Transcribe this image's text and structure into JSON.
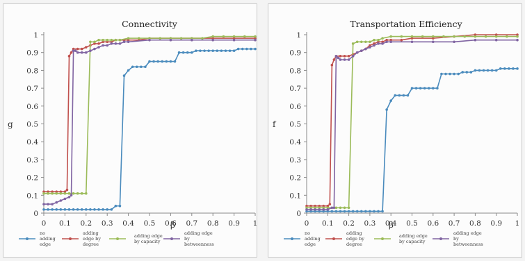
{
  "colors": {
    "none": "#4a8bbd",
    "degree": "#c0504d",
    "capacity": "#9bbb59",
    "betweenness": "#8064a2"
  },
  "chart_data": [
    {
      "type": "line",
      "title": "Connectivity",
      "ylabel": "g",
      "xlabel": "β",
      "xlim": [
        0,
        1
      ],
      "ylim": [
        0,
        1
      ],
      "xticks": [
        "0",
        "0.1",
        "0.2",
        "0.3",
        "0.4",
        "0.5",
        "0.6",
        "0.7",
        "0.8",
        "0.9",
        "1"
      ],
      "yticks": [
        "0",
        "0.1",
        "0.2",
        "0.3",
        "0.4",
        "0.5",
        "0.6",
        "0.7",
        "0.8",
        "0.9",
        "1"
      ],
      "grid": false,
      "legend_position": "bottom",
      "series": [
        {
          "name": [
            "no",
            "adding",
            "edge"
          ],
          "color_key": "none",
          "x": [
            0,
            0.02,
            0.04,
            0.06,
            0.08,
            0.1,
            0.12,
            0.14,
            0.16,
            0.18,
            0.2,
            0.22,
            0.24,
            0.26,
            0.28,
            0.3,
            0.32,
            0.34,
            0.36,
            0.38,
            0.4,
            0.42,
            0.44,
            0.46,
            0.48,
            0.5,
            0.52,
            0.54,
            0.56,
            0.58,
            0.6,
            0.62,
            0.64,
            0.66,
            0.68,
            0.7,
            0.72,
            0.74,
            0.76,
            0.78,
            0.8,
            0.82,
            0.84,
            0.86,
            0.88,
            0.9,
            0.92,
            0.94,
            0.96,
            0.98,
            1
          ],
          "y": [
            0.02,
            0.02,
            0.02,
            0.02,
            0.02,
            0.02,
            0.02,
            0.02,
            0.02,
            0.02,
            0.02,
            0.02,
            0.02,
            0.02,
            0.02,
            0.02,
            0.02,
            0.04,
            0.04,
            0.77,
            0.8,
            0.82,
            0.82,
            0.82,
            0.82,
            0.85,
            0.85,
            0.85,
            0.85,
            0.85,
            0.85,
            0.85,
            0.9,
            0.9,
            0.9,
            0.9,
            0.91,
            0.91,
            0.91,
            0.91,
            0.91,
            0.91,
            0.91,
            0.91,
            0.91,
            0.91,
            0.92,
            0.92,
            0.92,
            0.92,
            0.92
          ]
        },
        {
          "name": [
            "adding",
            "edge by",
            "degree"
          ],
          "color_key": "degree",
          "x": [
            0,
            0.02,
            0.04,
            0.06,
            0.08,
            0.1,
            0.11,
            0.12,
            0.13,
            0.14,
            0.16,
            0.18,
            0.2,
            0.22,
            0.24,
            0.26,
            0.28,
            0.3,
            0.32,
            0.34,
            0.36,
            0.38,
            0.4,
            0.45,
            0.5,
            0.6,
            0.7,
            0.8,
            0.9,
            1
          ],
          "y": [
            0.12,
            0.12,
            0.12,
            0.12,
            0.12,
            0.12,
            0.13,
            0.88,
            0.9,
            0.92,
            0.92,
            0.92,
            0.93,
            0.94,
            0.95,
            0.95,
            0.96,
            0.96,
            0.96,
            0.97,
            0.97,
            0.97,
            0.97,
            0.97,
            0.98,
            0.98,
            0.98,
            0.98,
            0.98,
            0.98
          ]
        },
        {
          "name": [
            "adding edge",
            "by capacity"
          ],
          "color_key": "capacity",
          "x": [
            0,
            0.02,
            0.04,
            0.06,
            0.08,
            0.1,
            0.12,
            0.14,
            0.16,
            0.18,
            0.2,
            0.22,
            0.24,
            0.26,
            0.28,
            0.3,
            0.32,
            0.34,
            0.36,
            0.4,
            0.45,
            0.5,
            0.55,
            0.6,
            0.65,
            0.7,
            0.75,
            0.8,
            0.85,
            0.9,
            0.95,
            1
          ],
          "y": [
            0.11,
            0.11,
            0.11,
            0.11,
            0.11,
            0.11,
            0.11,
            0.11,
            0.11,
            0.11,
            0.11,
            0.96,
            0.96,
            0.97,
            0.97,
            0.97,
            0.97,
            0.97,
            0.97,
            0.98,
            0.98,
            0.98,
            0.98,
            0.98,
            0.98,
            0.98,
            0.98,
            0.99,
            0.99,
            0.99,
            0.99,
            0.99
          ]
        },
        {
          "name": [
            "adding edge",
            "by",
            "betweenness"
          ],
          "color_key": "betweenness",
          "x": [
            0,
            0.02,
            0.04,
            0.06,
            0.08,
            0.1,
            0.12,
            0.13,
            0.14,
            0.15,
            0.16,
            0.18,
            0.2,
            0.22,
            0.24,
            0.26,
            0.28,
            0.3,
            0.32,
            0.34,
            0.36,
            0.38,
            0.4,
            0.5,
            0.6,
            0.7,
            0.8,
            0.9,
            1
          ],
          "y": [
            0.05,
            0.05,
            0.05,
            0.06,
            0.07,
            0.08,
            0.09,
            0.1,
            0.91,
            0.91,
            0.9,
            0.9,
            0.9,
            0.91,
            0.92,
            0.93,
            0.94,
            0.94,
            0.95,
            0.95,
            0.95,
            0.96,
            0.96,
            0.97,
            0.97,
            0.97,
            0.97,
            0.97,
            0.97
          ]
        }
      ]
    },
    {
      "type": "line",
      "title": "Transportation Efficiency",
      "ylabel": "f",
      "xlabel": "β",
      "xlim": [
        0,
        1
      ],
      "ylim": [
        0,
        1
      ],
      "xticks": [
        "0",
        "0.1",
        "0.2",
        "0.3",
        "0.4",
        "0.5",
        "0.6",
        "0.7",
        "0.8",
        "0.9",
        "1"
      ],
      "yticks": [
        "0",
        "0.1",
        "0.2",
        "0.3",
        "0.4",
        "0.5",
        "0.6",
        "0.7",
        "0.8",
        "0.9",
        "1"
      ],
      "grid": false,
      "legend_position": "bottom",
      "series": [
        {
          "name": [
            "no",
            "adding",
            "edge"
          ],
          "color_key": "none",
          "x": [
            0,
            0.02,
            0.04,
            0.06,
            0.08,
            0.1,
            0.12,
            0.14,
            0.16,
            0.18,
            0.2,
            0.22,
            0.24,
            0.26,
            0.28,
            0.3,
            0.32,
            0.34,
            0.36,
            0.38,
            0.4,
            0.42,
            0.44,
            0.46,
            0.48,
            0.5,
            0.52,
            0.54,
            0.56,
            0.58,
            0.6,
            0.62,
            0.64,
            0.66,
            0.68,
            0.7,
            0.72,
            0.74,
            0.76,
            0.78,
            0.8,
            0.82,
            0.84,
            0.86,
            0.88,
            0.9,
            0.92,
            0.94,
            0.96,
            0.98,
            1
          ],
          "y": [
            0.01,
            0.01,
            0.01,
            0.01,
            0.01,
            0.01,
            0.01,
            0.01,
            0.01,
            0.01,
            0.01,
            0.01,
            0.01,
            0.01,
            0.01,
            0.01,
            0.01,
            0.01,
            0.01,
            0.58,
            0.63,
            0.66,
            0.66,
            0.66,
            0.66,
            0.7,
            0.7,
            0.7,
            0.7,
            0.7,
            0.7,
            0.7,
            0.78,
            0.78,
            0.78,
            0.78,
            0.78,
            0.79,
            0.79,
            0.79,
            0.8,
            0.8,
            0.8,
            0.8,
            0.8,
            0.8,
            0.81,
            0.81,
            0.81,
            0.81,
            0.81
          ]
        },
        {
          "name": [
            "adding",
            "edge by",
            "degree"
          ],
          "color_key": "degree",
          "x": [
            0,
            0.02,
            0.04,
            0.06,
            0.08,
            0.1,
            0.11,
            0.12,
            0.13,
            0.14,
            0.16,
            0.18,
            0.2,
            0.22,
            0.24,
            0.26,
            0.28,
            0.3,
            0.32,
            0.34,
            0.36,
            0.38,
            0.4,
            0.45,
            0.5,
            0.6,
            0.7,
            0.8,
            0.9,
            1
          ],
          "y": [
            0.04,
            0.04,
            0.04,
            0.04,
            0.04,
            0.04,
            0.05,
            0.83,
            0.86,
            0.88,
            0.88,
            0.88,
            0.88,
            0.89,
            0.9,
            0.91,
            0.92,
            0.94,
            0.95,
            0.96,
            0.96,
            0.97,
            0.97,
            0.97,
            0.98,
            0.98,
            0.99,
            1,
            1,
            1
          ]
        },
        {
          "name": [
            "adding edge",
            "by capacity"
          ],
          "color_key": "capacity",
          "x": [
            0,
            0.02,
            0.04,
            0.06,
            0.08,
            0.1,
            0.12,
            0.14,
            0.16,
            0.18,
            0.2,
            0.22,
            0.24,
            0.26,
            0.28,
            0.3,
            0.32,
            0.34,
            0.36,
            0.4,
            0.45,
            0.5,
            0.55,
            0.6,
            0.65,
            0.7,
            0.75,
            0.8,
            0.85,
            0.9,
            0.95,
            1
          ],
          "y": [
            0.03,
            0.03,
            0.03,
            0.03,
            0.03,
            0.03,
            0.03,
            0.03,
            0.03,
            0.03,
            0.03,
            0.95,
            0.96,
            0.96,
            0.96,
            0.96,
            0.97,
            0.97,
            0.98,
            0.99,
            0.99,
            0.99,
            0.99,
            0.99,
            0.99,
            0.99,
            0.99,
            0.99,
            0.99,
            0.99,
            0.99,
            0.99
          ]
        },
        {
          "name": [
            "adding edge",
            "by",
            "betweenness"
          ],
          "color_key": "betweenness",
          "x": [
            0,
            0.02,
            0.04,
            0.06,
            0.08,
            0.1,
            0.12,
            0.13,
            0.14,
            0.15,
            0.16,
            0.18,
            0.2,
            0.22,
            0.24,
            0.26,
            0.28,
            0.3,
            0.32,
            0.34,
            0.36,
            0.38,
            0.4,
            0.5,
            0.6,
            0.7,
            0.8,
            0.9,
            1
          ],
          "y": [
            0.02,
            0.02,
            0.02,
            0.02,
            0.02,
            0.02,
            0.03,
            0.03,
            0.88,
            0.87,
            0.86,
            0.86,
            0.86,
            0.88,
            0.9,
            0.91,
            0.92,
            0.93,
            0.94,
            0.95,
            0.95,
            0.96,
            0.96,
            0.96,
            0.96,
            0.96,
            0.97,
            0.97,
            0.97
          ]
        }
      ]
    }
  ]
}
